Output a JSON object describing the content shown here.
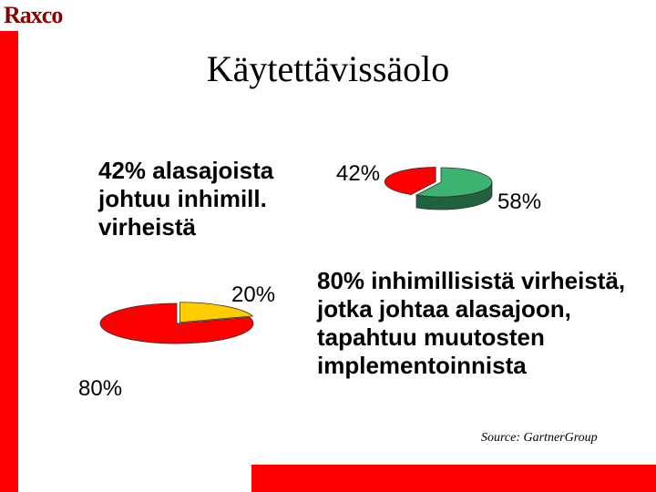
{
  "logo": "Raxco",
  "title": "Käytettävissäolo",
  "texts": {
    "left_top": [
      "42% alasajoista",
      "johtuu inhimill.",
      "virheistä"
    ],
    "right_mid": [
      "80% inhimillisistä virheistä,",
      "jotka johtaa alasajoon,",
      "tapahtuu muutosten",
      "implementoinnista"
    ]
  },
  "source": "Source: GartnerGroup",
  "colors": {
    "accent": "#ff0000",
    "dark_red": "#8b0000",
    "green": "#3cb371",
    "dark_green": "#1e6e3c",
    "yellow": "#ffcc00"
  },
  "chart_data": [
    {
      "type": "pie",
      "slices": [
        {
          "label": "42%",
          "value": 42,
          "color": "#ff0000"
        },
        {
          "label": "58%",
          "value": 58,
          "color": "#3cb371"
        }
      ]
    },
    {
      "type": "pie",
      "slices": [
        {
          "label": "20%",
          "value": 20,
          "color": "#ffcc00"
        },
        {
          "label": "80%",
          "value": 80,
          "color": "#ff0000"
        }
      ]
    }
  ]
}
